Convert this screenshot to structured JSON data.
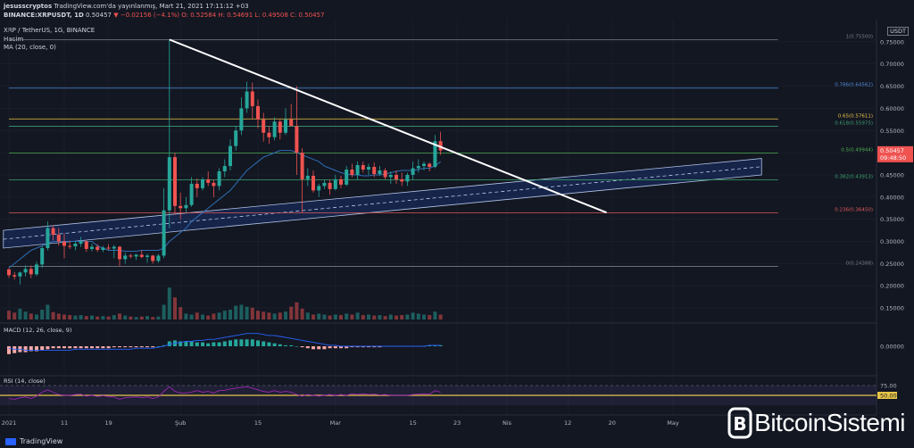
{
  "header": {
    "publisher": "jesusscryptos",
    "published_on": "TradingView.com'da yayınlanmış, Mart 21, 2021 17:11:12 +03",
    "symbol": "BINANCE:XRPUSDT, 1D",
    "last": "0.50457",
    "change": "▼ −0.02156 (−4.1%)",
    "ohlc": "O: 0.52584  H: 0.54691  L: 0.49508  C: 0.50457",
    "title": "XRP / TetherUS, 1G, BINANCE",
    "volume_label": "Hacim",
    "ma_label": "MA (20, close, 0)",
    "currency": "USDT"
  },
  "price_badge": {
    "value": "0.50457",
    "countdown": "09:48:50"
  },
  "fib_levels": [
    {
      "ratio": "1",
      "price": 0.755,
      "text": "1(0.75500)",
      "color": "#787b86"
    },
    {
      "ratio": "0.786",
      "price": 0.64562,
      "text": "0.786(0.64562)",
      "color": "#4f8bd6"
    },
    {
      "ratio": "0.65",
      "price": 0.57611,
      "text": "0.65(0.57611)",
      "color": "#e8c547"
    },
    {
      "ratio": "0.618",
      "price": 0.55975,
      "text": "0.618(0.55975)",
      "color": "#3f9c72"
    },
    {
      "ratio": "0.5",
      "price": 0.49944,
      "text": "0.5(0.49944)",
      "color": "#4caf50"
    },
    {
      "ratio": "0.382",
      "price": 0.43913,
      "text": "0.382(0.43913)",
      "color": "#3ba66d"
    },
    {
      "ratio": "0.236",
      "price": 0.3645,
      "text": "0.236(0.36450)",
      "color": "#e05a5a"
    },
    {
      "ratio": "0",
      "price": 0.24388,
      "text": "0(0.24388)",
      "color": "#787b86"
    }
  ],
  "price_axis_ticks": [
    "0.75000",
    "0.70000",
    "0.65000",
    "0.60000",
    "0.55000",
    "0.50000",
    "0.45000",
    "0.40000",
    "0.35000",
    "0.30000",
    "0.25000",
    "0.20000",
    "0.15000"
  ],
  "x_axis_ticks": [
    "2021",
    "11",
    "19",
    "Şub",
    "15",
    "Mar",
    "15",
    "23",
    "Nis",
    "12",
    "20",
    "May"
  ],
  "macd": {
    "label": "MACD (12, 26, close, 9)",
    "zero_tick": "0.00000"
  },
  "rsi": {
    "label": "RSI (14, close)",
    "upper": "75.00",
    "mid": "50.00",
    "lower": "25.00"
  },
  "footer": {
    "tv_brand": "TradingView",
    "watermark": "BitcoinSistemi"
  },
  "colors": {
    "up": "#26a69a",
    "down": "#ef5350",
    "bg": "#131722",
    "grid": "#1e2230",
    "trend": "#ffffff",
    "ma": "#2e6db4",
    "rsi": "#9c27b0"
  },
  "chart_data": {
    "type": "candlestick",
    "title": "XRP / TetherUS, 1G, BINANCE",
    "interval": "1D",
    "x_range": [
      "2021-01-01",
      "2021-05-20"
    ],
    "ylim": [
      0.12,
      0.8
    ],
    "candles": [
      {
        "d": "2021-01-01",
        "o": 0.237,
        "h": 0.24,
        "l": 0.218,
        "c": 0.224
      },
      {
        "d": "2021-01-02",
        "o": 0.224,
        "h": 0.231,
        "l": 0.214,
        "c": 0.221
      },
      {
        "d": "2021-01-03",
        "o": 0.221,
        "h": 0.232,
        "l": 0.203,
        "c": 0.23
      },
      {
        "d": "2021-01-04",
        "o": 0.23,
        "h": 0.246,
        "l": 0.221,
        "c": 0.238
      },
      {
        "d": "2021-01-05",
        "o": 0.238,
        "h": 0.246,
        "l": 0.217,
        "c": 0.226
      },
      {
        "d": "2021-01-06",
        "o": 0.226,
        "h": 0.255,
        "l": 0.222,
        "c": 0.248
      },
      {
        "d": "2021-01-07",
        "o": 0.248,
        "h": 0.29,
        "l": 0.24,
        "c": 0.285
      },
      {
        "d": "2021-01-08",
        "o": 0.285,
        "h": 0.345,
        "l": 0.28,
        "c": 0.33
      },
      {
        "d": "2021-01-09",
        "o": 0.33,
        "h": 0.336,
        "l": 0.302,
        "c": 0.315
      },
      {
        "d": "2021-01-10",
        "o": 0.315,
        "h": 0.33,
        "l": 0.29,
        "c": 0.3
      },
      {
        "d": "2021-01-11",
        "o": 0.3,
        "h": 0.318,
        "l": 0.262,
        "c": 0.29
      },
      {
        "d": "2021-01-12",
        "o": 0.29,
        "h": 0.302,
        "l": 0.283,
        "c": 0.289
      },
      {
        "d": "2021-01-13",
        "o": 0.289,
        "h": 0.3,
        "l": 0.28,
        "c": 0.295
      },
      {
        "d": "2021-01-14",
        "o": 0.295,
        "h": 0.31,
        "l": 0.288,
        "c": 0.3
      },
      {
        "d": "2021-01-15",
        "o": 0.3,
        "h": 0.304,
        "l": 0.276,
        "c": 0.283
      },
      {
        "d": "2021-01-16",
        "o": 0.283,
        "h": 0.295,
        "l": 0.278,
        "c": 0.288
      },
      {
        "d": "2021-01-17",
        "o": 0.288,
        "h": 0.294,
        "l": 0.276,
        "c": 0.281
      },
      {
        "d": "2021-01-18",
        "o": 0.281,
        "h": 0.29,
        "l": 0.276,
        "c": 0.286
      },
      {
        "d": "2021-01-19",
        "o": 0.286,
        "h": 0.294,
        "l": 0.28,
        "c": 0.284
      },
      {
        "d": "2021-01-20",
        "o": 0.284,
        "h": 0.292,
        "l": 0.262,
        "c": 0.288
      },
      {
        "d": "2021-01-21",
        "o": 0.288,
        "h": 0.29,
        "l": 0.245,
        "c": 0.26
      },
      {
        "d": "2021-01-22",
        "o": 0.26,
        "h": 0.275,
        "l": 0.25,
        "c": 0.268
      },
      {
        "d": "2021-01-23",
        "o": 0.268,
        "h": 0.272,
        "l": 0.262,
        "c": 0.266
      },
      {
        "d": "2021-01-24",
        "o": 0.266,
        "h": 0.272,
        "l": 0.258,
        "c": 0.27
      },
      {
        "d": "2021-01-25",
        "o": 0.27,
        "h": 0.28,
        "l": 0.262,
        "c": 0.265
      },
      {
        "d": "2021-01-26",
        "o": 0.265,
        "h": 0.272,
        "l": 0.252,
        "c": 0.268
      },
      {
        "d": "2021-01-27",
        "o": 0.268,
        "h": 0.27,
        "l": 0.25,
        "c": 0.256
      },
      {
        "d": "2021-01-28",
        "o": 0.256,
        "h": 0.272,
        "l": 0.252,
        "c": 0.268
      },
      {
        "d": "2021-01-29",
        "o": 0.268,
        "h": 0.42,
        "l": 0.262,
        "c": 0.37
      },
      {
        "d": "2021-01-30",
        "o": 0.37,
        "h": 0.755,
        "l": 0.33,
        "c": 0.49
      },
      {
        "d": "2021-01-31",
        "o": 0.49,
        "h": 0.5,
        "l": 0.36,
        "c": 0.38
      },
      {
        "d": "2021-02-01",
        "o": 0.38,
        "h": 0.41,
        "l": 0.35,
        "c": 0.375
      },
      {
        "d": "2021-02-02",
        "o": 0.375,
        "h": 0.4,
        "l": 0.365,
        "c": 0.382
      },
      {
        "d": "2021-02-03",
        "o": 0.382,
        "h": 0.445,
        "l": 0.378,
        "c": 0.43
      },
      {
        "d": "2021-02-04",
        "o": 0.43,
        "h": 0.442,
        "l": 0.4,
        "c": 0.42
      },
      {
        "d": "2021-02-05",
        "o": 0.42,
        "h": 0.445,
        "l": 0.415,
        "c": 0.44
      },
      {
        "d": "2021-02-06",
        "o": 0.44,
        "h": 0.458,
        "l": 0.425,
        "c": 0.432
      },
      {
        "d": "2021-02-07",
        "o": 0.432,
        "h": 0.44,
        "l": 0.4,
        "c": 0.425
      },
      {
        "d": "2021-02-08",
        "o": 0.425,
        "h": 0.465,
        "l": 0.415,
        "c": 0.458
      },
      {
        "d": "2021-02-09",
        "o": 0.458,
        "h": 0.485,
        "l": 0.445,
        "c": 0.47
      },
      {
        "d": "2021-02-10",
        "o": 0.47,
        "h": 0.53,
        "l": 0.46,
        "c": 0.515
      },
      {
        "d": "2021-02-11",
        "o": 0.515,
        "h": 0.56,
        "l": 0.505,
        "c": 0.55
      },
      {
        "d": "2021-02-12",
        "o": 0.55,
        "h": 0.625,
        "l": 0.54,
        "c": 0.6
      },
      {
        "d": "2021-02-13",
        "o": 0.6,
        "h": 0.66,
        "l": 0.59,
        "c": 0.638
      },
      {
        "d": "2021-02-14",
        "o": 0.638,
        "h": 0.658,
        "l": 0.575,
        "c": 0.605
      },
      {
        "d": "2021-02-15",
        "o": 0.605,
        "h": 0.62,
        "l": 0.555,
        "c": 0.575
      },
      {
        "d": "2021-02-16",
        "o": 0.575,
        "h": 0.59,
        "l": 0.525,
        "c": 0.545
      },
      {
        "d": "2021-02-17",
        "o": 0.545,
        "h": 0.56,
        "l": 0.52,
        "c": 0.535
      },
      {
        "d": "2021-02-18",
        "o": 0.535,
        "h": 0.58,
        "l": 0.528,
        "c": 0.57
      },
      {
        "d": "2021-02-19",
        "o": 0.57,
        "h": 0.575,
        "l": 0.53,
        "c": 0.545
      },
      {
        "d": "2021-02-20",
        "o": 0.545,
        "h": 0.6,
        "l": 0.54,
        "c": 0.575
      },
      {
        "d": "2021-02-21",
        "o": 0.575,
        "h": 0.61,
        "l": 0.56,
        "c": 0.56
      },
      {
        "d": "2021-02-22",
        "o": 0.56,
        "h": 0.65,
        "l": 0.45,
        "c": 0.5
      },
      {
        "d": "2021-02-23",
        "o": 0.5,
        "h": 0.51,
        "l": 0.365,
        "c": 0.44
      },
      {
        "d": "2021-02-24",
        "o": 0.44,
        "h": 0.465,
        "l": 0.425,
        "c": 0.448
      },
      {
        "d": "2021-02-25",
        "o": 0.448,
        "h": 0.46,
        "l": 0.41,
        "c": 0.415
      },
      {
        "d": "2021-02-26",
        "o": 0.415,
        "h": 0.43,
        "l": 0.4,
        "c": 0.425
      },
      {
        "d": "2021-02-27",
        "o": 0.425,
        "h": 0.44,
        "l": 0.418,
        "c": 0.432
      },
      {
        "d": "2021-02-28",
        "o": 0.432,
        "h": 0.44,
        "l": 0.405,
        "c": 0.418
      },
      {
        "d": "2021-03-01",
        "o": 0.418,
        "h": 0.45,
        "l": 0.415,
        "c": 0.44
      },
      {
        "d": "2021-03-02",
        "o": 0.44,
        "h": 0.448,
        "l": 0.42,
        "c": 0.428
      },
      {
        "d": "2021-03-03",
        "o": 0.428,
        "h": 0.47,
        "l": 0.425,
        "c": 0.462
      },
      {
        "d": "2021-03-04",
        "o": 0.462,
        "h": 0.475,
        "l": 0.445,
        "c": 0.45
      },
      {
        "d": "2021-03-05",
        "o": 0.45,
        "h": 0.48,
        "l": 0.44,
        "c": 0.472
      },
      {
        "d": "2021-03-06",
        "o": 0.472,
        "h": 0.48,
        "l": 0.455,
        "c": 0.462
      },
      {
        "d": "2021-03-07",
        "o": 0.462,
        "h": 0.475,
        "l": 0.45,
        "c": 0.468
      },
      {
        "d": "2021-03-08",
        "o": 0.468,
        "h": 0.478,
        "l": 0.445,
        "c": 0.452
      },
      {
        "d": "2021-03-09",
        "o": 0.452,
        "h": 0.47,
        "l": 0.448,
        "c": 0.46
      },
      {
        "d": "2021-03-10",
        "o": 0.46,
        "h": 0.465,
        "l": 0.44,
        "c": 0.445
      },
      {
        "d": "2021-03-11",
        "o": 0.445,
        "h": 0.458,
        "l": 0.43,
        "c": 0.45
      },
      {
        "d": "2021-03-12",
        "o": 0.45,
        "h": 0.46,
        "l": 0.43,
        "c": 0.44
      },
      {
        "d": "2021-03-13",
        "o": 0.44,
        "h": 0.455,
        "l": 0.425,
        "c": 0.435
      },
      {
        "d": "2021-03-14",
        "o": 0.435,
        "h": 0.455,
        "l": 0.425,
        "c": 0.45
      },
      {
        "d": "2021-03-15",
        "o": 0.45,
        "h": 0.48,
        "l": 0.44,
        "c": 0.465
      },
      {
        "d": "2021-03-16",
        "o": 0.465,
        "h": 0.485,
        "l": 0.455,
        "c": 0.47
      },
      {
        "d": "2021-03-17",
        "o": 0.47,
        "h": 0.48,
        "l": 0.46,
        "c": 0.475
      },
      {
        "d": "2021-03-18",
        "o": 0.475,
        "h": 0.478,
        "l": 0.458,
        "c": 0.468
      },
      {
        "d": "2021-03-19",
        "o": 0.468,
        "h": 0.54,
        "l": 0.465,
        "c": 0.526
      },
      {
        "d": "2021-03-20",
        "o": 0.526,
        "h": 0.547,
        "l": 0.495,
        "c": 0.505
      }
    ],
    "ma20": [
      0.24,
      0.25,
      0.26,
      0.27,
      0.28,
      0.285,
      0.29,
      0.295,
      0.3,
      0.3,
      0.3,
      0.3,
      0.3,
      0.3,
      0.3,
      0.3,
      0.29,
      0.285,
      0.28,
      0.28,
      0.28,
      0.278,
      0.278,
      0.278,
      0.28,
      0.28,
      0.28,
      0.28,
      0.285,
      0.3,
      0.31,
      0.32,
      0.33,
      0.345,
      0.355,
      0.365,
      0.375,
      0.385,
      0.395,
      0.405,
      0.415,
      0.43,
      0.445,
      0.46,
      0.47,
      0.48,
      0.49,
      0.495,
      0.5,
      0.505,
      0.505,
      0.505,
      0.5,
      0.495,
      0.49,
      0.485,
      0.48,
      0.47,
      0.465,
      0.46,
      0.455,
      0.452,
      0.45,
      0.45,
      0.448,
      0.448,
      0.45,
      0.45,
      0.452,
      0.455,
      0.458,
      0.46,
      0.46,
      0.46,
      0.462,
      0.465,
      0.465,
      0.47,
      0.48
    ],
    "trendline": {
      "from": {
        "d": "2021-01-30",
        "price": 0.755
      },
      "to": {
        "d": "2021-04-19",
        "price": 0.365
      }
    },
    "channel": {
      "upper": {
        "from": {
          "d": "2020-12-31",
          "price": 0.325
        },
        "to": {
          "d": "2021-05-17",
          "price": 0.487
        }
      },
      "lower": {
        "from": {
          "d": "2020-12-31",
          "price": 0.285
        },
        "to": {
          "d": "2021-05-17",
          "price": 0.45
        }
      }
    },
    "volume": [
      18,
      14,
      22,
      16,
      12,
      10,
      20,
      30,
      15,
      12,
      10,
      9,
      8,
      9,
      7,
      8,
      6,
      7,
      6,
      9,
      12,
      8,
      6,
      5,
      6,
      7,
      5,
      6,
      30,
      65,
      45,
      25,
      12,
      10,
      14,
      10,
      8,
      12,
      14,
      18,
      20,
      28,
      30,
      26,
      24,
      18,
      16,
      14,
      12,
      14,
      16,
      26,
      35,
      22,
      14,
      10,
      12,
      10,
      8,
      10,
      9,
      12,
      10,
      14,
      9,
      10,
      8,
      9,
      7,
      10,
      8,
      9,
      10,
      14,
      12,
      10,
      9,
      16,
      10
    ],
    "macd_hist": [
      -8,
      -7,
      -6,
      -6,
      -5,
      -5,
      -4,
      -3,
      -2,
      -2,
      -2,
      -2,
      -2,
      -2,
      -2,
      -2,
      -2,
      -2,
      -2,
      -1,
      -1,
      -1,
      -1,
      -1,
      -1,
      -1,
      -1,
      0,
      1,
      5,
      6,
      5,
      5,
      5,
      4,
      4,
      3,
      4,
      4,
      5,
      6,
      7,
      7,
      7,
      7,
      6,
      5,
      4,
      3,
      2,
      1,
      1,
      0,
      -1,
      -2,
      -3,
      -3,
      -3,
      -2,
      -2,
      -2,
      -2,
      -1,
      -1,
      -1,
      -1,
      -1,
      -1,
      0,
      0,
      0,
      0,
      0,
      0,
      0,
      0,
      1,
      1,
      1
    ],
    "macd_line": [
      -2,
      -3,
      -3,
      -4,
      -4,
      -4,
      -4,
      -4,
      -4,
      -4,
      -4,
      -4,
      -3,
      -3,
      -3,
      -3,
      -3,
      -3,
      -3,
      -3,
      -3,
      -3,
      -3,
      -2,
      -2,
      -2,
      -2,
      -1,
      0,
      2,
      3,
      4,
      5,
      5,
      6,
      6,
      7,
      7,
      8,
      9,
      10,
      11,
      12,
      13,
      13,
      13,
      12,
      11,
      11,
      10,
      9,
      8,
      7,
      6,
      5,
      4,
      3,
      2,
      1,
      1,
      0,
      0,
      0,
      0,
      0,
      0,
      0,
      0,
      0,
      0,
      0,
      0,
      0,
      0,
      0,
      0,
      1,
      1,
      1
    ],
    "rsi": [
      42,
      40,
      44,
      46,
      42,
      48,
      58,
      64,
      58,
      52,
      50,
      50,
      52,
      53,
      48,
      50,
      47,
      49,
      47,
      46,
      40,
      44,
      45,
      46,
      44,
      46,
      42,
      46,
      60,
      72,
      60,
      56,
      56,
      58,
      62,
      58,
      60,
      56,
      62,
      63,
      66,
      68,
      70,
      72,
      68,
      64,
      60,
      58,
      62,
      58,
      60,
      58,
      52,
      48,
      52,
      50,
      48,
      50,
      52,
      50,
      52,
      50,
      54,
      52,
      54,
      52,
      53,
      51,
      52,
      50,
      50,
      50,
      50,
      52,
      53,
      54,
      53,
      62,
      58
    ]
  }
}
